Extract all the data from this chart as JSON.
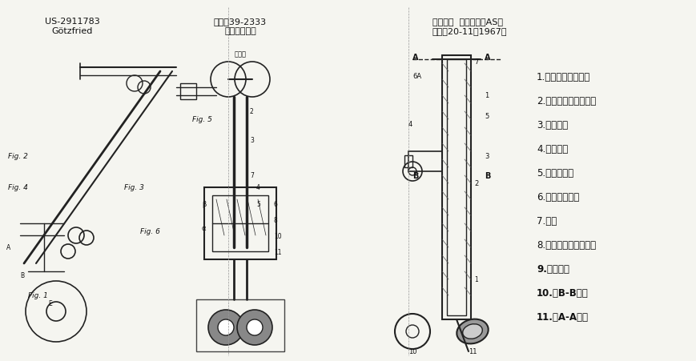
{
  "background_color": "#f5f5f0",
  "title_left": "US-2911783\nGötzfried",
  "title_mid": "特公映39-2333\n豊田自動織機",
  "title_right": "東洋紡績  空気渦流法AS型\n繊維工20-11（1967）",
  "legend_items": [
    "1.　サクションエア",
    "2.　サクションパイプ",
    "3.　紡糸管",
    "4.　導糸管",
    "5.　圧縮空気",
    "6.　加燃ノズル",
    "7.　糸",
    "8.　フィードローラー",
    "9.　繊維扙",
    "10.　B-B断面",
    "11.　A-A断面"
  ],
  "fig_width": 8.7,
  "fig_height": 4.52,
  "dpi": 100
}
